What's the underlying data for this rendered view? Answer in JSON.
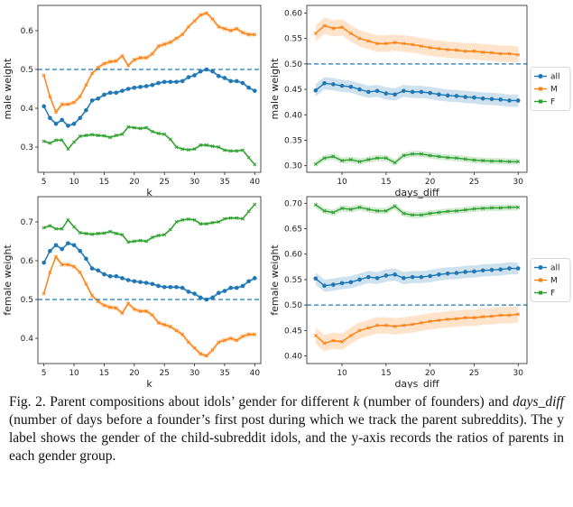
{
  "chart_data": [
    {
      "type": "line",
      "xlabel": "k",
      "ylabel": "male weight",
      "xlim": [
        4,
        41
      ],
      "ylim": [
        0.235,
        0.665
      ],
      "xticks": [
        5,
        10,
        15,
        20,
        25,
        30,
        35,
        40
      ],
      "yticks": [
        0.3,
        0.4,
        0.5,
        0.6
      ],
      "ytick_labels": [
        "0.3",
        "0.4",
        "0.5",
        "0.6"
      ],
      "reference_line": 0.5,
      "x": [
        5,
        6,
        7,
        8,
        9,
        10,
        11,
        12,
        13,
        14,
        15,
        16,
        17,
        18,
        19,
        20,
        21,
        22,
        23,
        24,
        25,
        26,
        27,
        28,
        29,
        30,
        31,
        32,
        33,
        34,
        35,
        36,
        37,
        38,
        39,
        40
      ],
      "series": [
        {
          "name": "all",
          "color": "#1f77b4",
          "band": 0.004,
          "values": [
            0.405,
            0.375,
            0.36,
            0.37,
            0.355,
            0.36,
            0.375,
            0.395,
            0.42,
            0.425,
            0.435,
            0.44,
            0.44,
            0.445,
            0.45,
            0.453,
            0.455,
            0.457,
            0.46,
            0.465,
            0.468,
            0.468,
            0.468,
            0.47,
            0.48,
            0.485,
            0.495,
            0.5,
            0.495,
            0.483,
            0.478,
            0.47,
            0.47,
            0.465,
            0.453,
            0.445
          ]
        },
        {
          "name": "M",
          "color": "#ff7f0e",
          "band": 0.006,
          "values": [
            0.485,
            0.43,
            0.39,
            0.41,
            0.41,
            0.415,
            0.43,
            0.46,
            0.49,
            0.505,
            0.515,
            0.52,
            0.522,
            0.535,
            0.51,
            0.525,
            0.53,
            0.53,
            0.54,
            0.56,
            0.565,
            0.57,
            0.58,
            0.59,
            0.61,
            0.625,
            0.64,
            0.645,
            0.63,
            0.61,
            0.605,
            0.6,
            0.605,
            0.595,
            0.59,
            0.59
          ]
        },
        {
          "name": "F",
          "color": "#2ca02c",
          "band": 0.004,
          "values": [
            0.315,
            0.31,
            0.318,
            0.318,
            0.295,
            0.313,
            0.328,
            0.33,
            0.332,
            0.33,
            0.329,
            0.325,
            0.33,
            0.333,
            0.352,
            0.35,
            0.348,
            0.35,
            0.34,
            0.335,
            0.333,
            0.32,
            0.3,
            0.295,
            0.293,
            0.295,
            0.305,
            0.305,
            0.302,
            0.3,
            0.292,
            0.29,
            0.29,
            0.292,
            0.273,
            0.255
          ]
        }
      ]
    },
    {
      "type": "line",
      "xlabel": "days_diff",
      "ylabel": "male weight",
      "xlim": [
        6,
        31
      ],
      "ylim": [
        0.287,
        0.615
      ],
      "xticks": [
        10,
        15,
        20,
        25,
        30
      ],
      "yticks": [
        0.3,
        0.35,
        0.4,
        0.45,
        0.5,
        0.55,
        0.6
      ],
      "ytick_labels": [
        "0.30",
        "0.35",
        "0.40",
        "0.45",
        "0.50",
        "0.55",
        "0.60"
      ],
      "reference_line": 0.5,
      "legend": {
        "position": "right",
        "entries": [
          "all",
          "M",
          "F"
        ]
      },
      "x": [
        7,
        8,
        9,
        10,
        11,
        12,
        13,
        14,
        15,
        16,
        17,
        18,
        19,
        20,
        21,
        22,
        23,
        24,
        25,
        26,
        27,
        28,
        29,
        30
      ],
      "series": [
        {
          "name": "all",
          "color": "#1f77b4",
          "band": 0.012,
          "values": [
            0.448,
            0.462,
            0.46,
            0.457,
            0.455,
            0.45,
            0.445,
            0.447,
            0.442,
            0.44,
            0.447,
            0.445,
            0.445,
            0.443,
            0.44,
            0.438,
            0.437,
            0.435,
            0.434,
            0.432,
            0.431,
            0.43,
            0.428,
            0.428
          ]
        },
        {
          "name": "M",
          "color": "#ff7f0e",
          "band": 0.016,
          "values": [
            0.56,
            0.575,
            0.57,
            0.572,
            0.56,
            0.55,
            0.545,
            0.54,
            0.54,
            0.542,
            0.54,
            0.538,
            0.535,
            0.532,
            0.53,
            0.528,
            0.527,
            0.525,
            0.525,
            0.523,
            0.522,
            0.52,
            0.52,
            0.518
          ]
        },
        {
          "name": "F",
          "color": "#2ca02c",
          "band": 0.006,
          "values": [
            0.303,
            0.315,
            0.318,
            0.31,
            0.312,
            0.308,
            0.312,
            0.315,
            0.315,
            0.306,
            0.32,
            0.323,
            0.323,
            0.32,
            0.318,
            0.316,
            0.315,
            0.313,
            0.311,
            0.31,
            0.309,
            0.309,
            0.308,
            0.308
          ]
        }
      ]
    },
    {
      "type": "line",
      "xlabel": "k",
      "ylabel": "female weight",
      "xlim": [
        4,
        41
      ],
      "ylim": [
        0.335,
        0.765
      ],
      "xticks": [
        5,
        10,
        15,
        20,
        25,
        30,
        35,
        40
      ],
      "yticks": [
        0.4,
        0.5,
        0.6,
        0.7
      ],
      "ytick_labels": [
        "0.4",
        "0.5",
        "0.6",
        "0.7"
      ],
      "reference_line": 0.5,
      "x": [
        5,
        6,
        7,
        8,
        9,
        10,
        11,
        12,
        13,
        14,
        15,
        16,
        17,
        18,
        19,
        20,
        21,
        22,
        23,
        24,
        25,
        26,
        27,
        28,
        29,
        30,
        31,
        32,
        33,
        34,
        35,
        36,
        37,
        38,
        39,
        40
      ],
      "series": [
        {
          "name": "all",
          "color": "#1f77b4",
          "band": 0.004,
          "values": [
            0.595,
            0.625,
            0.64,
            0.63,
            0.645,
            0.64,
            0.625,
            0.605,
            0.58,
            0.575,
            0.565,
            0.56,
            0.56,
            0.555,
            0.55,
            0.547,
            0.545,
            0.543,
            0.54,
            0.535,
            0.532,
            0.532,
            0.532,
            0.53,
            0.52,
            0.515,
            0.505,
            0.5,
            0.505,
            0.517,
            0.522,
            0.53,
            0.53,
            0.535,
            0.547,
            0.555
          ]
        },
        {
          "name": "M",
          "color": "#ff7f0e",
          "band": 0.006,
          "values": [
            0.515,
            0.57,
            0.61,
            0.59,
            0.59,
            0.585,
            0.57,
            0.54,
            0.51,
            0.495,
            0.485,
            0.48,
            0.478,
            0.465,
            0.49,
            0.475,
            0.47,
            0.47,
            0.46,
            0.44,
            0.435,
            0.43,
            0.42,
            0.41,
            0.39,
            0.375,
            0.36,
            0.355,
            0.37,
            0.39,
            0.395,
            0.4,
            0.395,
            0.405,
            0.41,
            0.41
          ]
        },
        {
          "name": "F",
          "color": "#2ca02c",
          "band": 0.004,
          "values": [
            0.685,
            0.69,
            0.682,
            0.682,
            0.705,
            0.687,
            0.672,
            0.67,
            0.668,
            0.67,
            0.671,
            0.675,
            0.67,
            0.667,
            0.648,
            0.65,
            0.652,
            0.65,
            0.66,
            0.665,
            0.667,
            0.68,
            0.7,
            0.705,
            0.707,
            0.705,
            0.695,
            0.695,
            0.698,
            0.7,
            0.708,
            0.71,
            0.71,
            0.708,
            0.727,
            0.745
          ]
        }
      ]
    },
    {
      "type": "line",
      "xlabel": "days_diff",
      "ylabel": "female weight",
      "xlim": [
        6,
        31
      ],
      "ylim": [
        0.385,
        0.713
      ],
      "xticks": [
        10,
        15,
        20,
        25,
        30
      ],
      "yticks": [
        0.4,
        0.45,
        0.5,
        0.55,
        0.6,
        0.65,
        0.7
      ],
      "ytick_labels": [
        "0.40",
        "0.45",
        "0.50",
        "0.55",
        "0.60",
        "0.65",
        "0.70"
      ],
      "reference_line": 0.5,
      "legend": {
        "position": "right",
        "entries": [
          "all",
          "M",
          "F"
        ]
      },
      "x": [
        7,
        8,
        9,
        10,
        11,
        12,
        13,
        14,
        15,
        16,
        17,
        18,
        19,
        20,
        21,
        22,
        23,
        24,
        25,
        26,
        27,
        28,
        29,
        30
      ],
      "series": [
        {
          "name": "all",
          "color": "#1f77b4",
          "band": 0.012,
          "values": [
            0.552,
            0.538,
            0.54,
            0.543,
            0.545,
            0.55,
            0.555,
            0.553,
            0.558,
            0.56,
            0.553,
            0.555,
            0.555,
            0.557,
            0.56,
            0.562,
            0.563,
            0.565,
            0.566,
            0.568,
            0.569,
            0.57,
            0.572,
            0.572
          ]
        },
        {
          "name": "M",
          "color": "#ff7f0e",
          "band": 0.016,
          "values": [
            0.44,
            0.425,
            0.43,
            0.428,
            0.44,
            0.45,
            0.455,
            0.46,
            0.46,
            0.458,
            0.46,
            0.462,
            0.465,
            0.468,
            0.47,
            0.472,
            0.473,
            0.475,
            0.475,
            0.477,
            0.478,
            0.48,
            0.48,
            0.482
          ]
        },
        {
          "name": "F",
          "color": "#2ca02c",
          "band": 0.006,
          "values": [
            0.697,
            0.685,
            0.682,
            0.69,
            0.688,
            0.692,
            0.688,
            0.685,
            0.685,
            0.694,
            0.68,
            0.677,
            0.677,
            0.68,
            0.682,
            0.684,
            0.685,
            0.687,
            0.689,
            0.69,
            0.691,
            0.691,
            0.692,
            0.692
          ]
        }
      ]
    }
  ],
  "caption": {
    "lead": "Fig. 2. Parent compositions about idols’ gender for different ",
    "k": "k",
    "mid1": " (number of founders) and ",
    "days_diff": "days_diff",
    "rest": "  (number of days before a founder’s first post during which we track the parent subreddits). The y label shows the gender of the child-subreddit idols, and the y-axis records the ratios of parents in each gender group."
  }
}
